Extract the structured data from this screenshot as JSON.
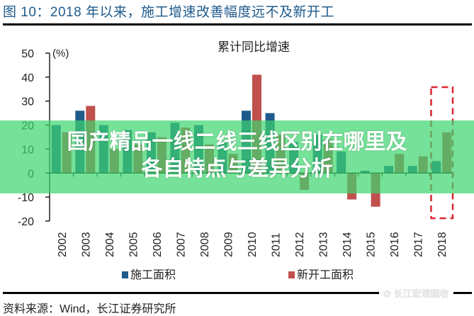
{
  "figure": {
    "title": "图 10：2018 年以来，施工增速改善幅度远不及新开工",
    "source": "资料来源：Wind，长江证券研究所",
    "watermark": "长江宏观固收"
  },
  "overlay": {
    "line1": "国产精品一线二线三线区别在哪里及",
    "line2": "各自特点与差异分析",
    "color": "#3cd66e"
  },
  "legend": {
    "items": [
      {
        "label": "施工面积",
        "color": "#1f5a8c"
      },
      {
        "label": "新开工面积",
        "color": "#c0504d"
      }
    ]
  },
  "chart_data": {
    "type": "bar",
    "title": "累计同比增速",
    "ylabel": "(%)",
    "xlabel": "",
    "ylim": [
      -20,
      50
    ],
    "yticks": [
      50,
      40,
      30,
      20,
      10,
      0,
      -10,
      -20
    ],
    "grid": false,
    "legend_position": "bottom",
    "categories": [
      "2002",
      "2003",
      "2004",
      "2005",
      "2006",
      "2007",
      "2008",
      "2009",
      "2010",
      "2011",
      "2012",
      "2013",
      "2014",
      "2015",
      "2016",
      "2017",
      "2018"
    ],
    "series": [
      {
        "name": "施工面积",
        "color": "#1f5a8c",
        "values": [
          20,
          26,
          20,
          18,
          17,
          21,
          20,
          13,
          26,
          25,
          13,
          16,
          9,
          1,
          3,
          3,
          5
        ]
      },
      {
        "name": "新开工面积",
        "color": "#c0504d",
        "values": [
          17,
          28,
          10,
          12,
          15,
          19,
          12,
          8,
          41,
          16,
          -7,
          14,
          -11,
          -14,
          8,
          7,
          17
        ]
      }
    ],
    "annotations": [
      {
        "type": "dashed-rectangle",
        "color": "#d9262e",
        "target": "2018"
      }
    ]
  }
}
